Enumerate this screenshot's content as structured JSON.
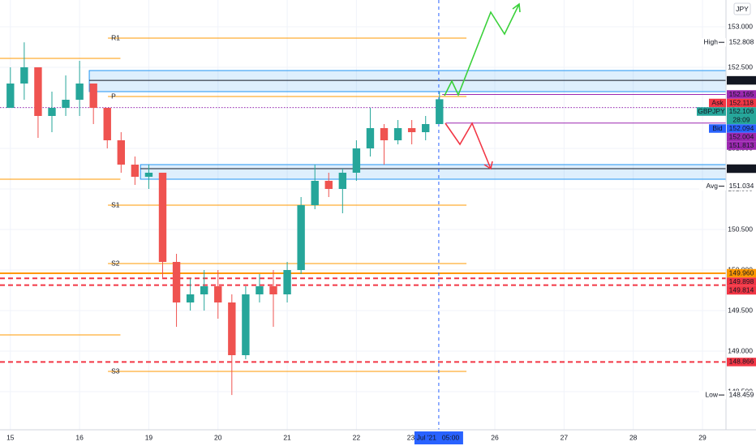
{
  "chart_data": {
    "type": "candlestick",
    "currency": "JPY",
    "x": [
      0,
      0.2,
      0.4,
      0.6,
      0.8,
      1,
      1.2,
      1.4,
      1.6,
      1.8,
      2,
      2.2,
      2.4,
      2.6,
      2.8,
      3,
      3.2,
      3.4,
      3.6,
      3.8,
      4,
      4.2,
      4.4,
      4.6,
      4.8,
      5,
      5.2,
      5.4,
      5.6,
      5.8,
      6,
      6.2
    ],
    "open": [
      152.0,
      152.3,
      152.5,
      151.9,
      152.0,
      152.1,
      152.3,
      152.0,
      151.6,
      151.3,
      151.15,
      151.2,
      150.1,
      149.6,
      149.7,
      149.8,
      149.6,
      148.95,
      149.7,
      149.8,
      149.7,
      150.0,
      150.8,
      151.1,
      151.0,
      151.2,
      151.5,
      151.75,
      151.6,
      151.75,
      151.7,
      151.8
    ],
    "high": [
      152.5,
      152.808,
      152.5,
      152.2,
      152.4,
      152.58,
      152.3,
      152.0,
      151.7,
      151.4,
      151.3,
      151.2,
      150.2,
      149.9,
      150.0,
      150.0,
      149.7,
      149.8,
      149.95,
      150.0,
      150.1,
      150.9,
      151.3,
      151.2,
      151.25,
      151.6,
      152.0,
      151.8,
      151.85,
      151.85,
      151.9,
      152.2
    ],
    "low": [
      152.0,
      152.1,
      151.63,
      151.7,
      151.9,
      151.9,
      151.8,
      151.5,
      151.2,
      151.05,
      151.0,
      149.9,
      149.3,
      149.5,
      149.5,
      149.4,
      148.459,
      148.9,
      149.6,
      149.3,
      149.6,
      149.95,
      150.75,
      150.9,
      150.7,
      151.1,
      151.4,
      151.3,
      151.55,
      151.55,
      151.6,
      151.8
    ],
    "close": [
      152.3,
      152.5,
      151.9,
      152.0,
      152.1,
      152.3,
      152.0,
      151.6,
      151.3,
      151.15,
      151.2,
      150.1,
      149.6,
      149.7,
      149.8,
      149.6,
      148.95,
      149.7,
      149.8,
      149.7,
      150.0,
      150.8,
      151.1,
      151.0,
      151.2,
      151.5,
      151.75,
      151.6,
      151.75,
      151.7,
      151.8,
      152.106
    ],
    "up_color": "#26a69a",
    "down_color": "#ef5350",
    "xlim": [
      -0.15,
      10.34
    ],
    "ylim": [
      148.03,
      153.33
    ],
    "xticks": [
      {
        "value": 0,
        "label": "15"
      },
      {
        "value": 1,
        "label": "16"
      },
      {
        "value": 2,
        "label": "19"
      },
      {
        "value": 3,
        "label": "20"
      },
      {
        "value": 4,
        "label": "21"
      },
      {
        "value": 5,
        "label": "22"
      },
      {
        "value": 7,
        "label": "26"
      },
      {
        "value": 8,
        "label": "27"
      },
      {
        "value": 9,
        "label": "28"
      },
      {
        "value": 10,
        "label": "29"
      }
    ],
    "yticks": [
      {
        "value": 153,
        "label": "153.000"
      },
      {
        "value": 152.5,
        "label": "152.500"
      },
      {
        "value": 152,
        "label": "152.000"
      },
      {
        "value": 151.5,
        "label": "151.500"
      },
      {
        "value": 151,
        "label": "151.000"
      },
      {
        "value": 150.5,
        "label": "150.500"
      },
      {
        "value": 150,
        "label": "150.000"
      },
      {
        "value": 149.5,
        "label": "149.500"
      },
      {
        "value": 149,
        "label": "149.000"
      },
      {
        "value": 148.5,
        "label": "148.500"
      }
    ],
    "grid": true,
    "crosshair": {
      "value": 6.19,
      "label": "23 Jul '21",
      "time": "05:00"
    },
    "zones": [
      {
        "from": 1.14,
        "to": 10.34,
        "low": 152.2,
        "high": 152.46
      },
      {
        "from": 1.88,
        "to": 10.34,
        "low": 151.12,
        "high": 151.3
      }
    ],
    "pivots": [
      {
        "name": "R1",
        "value": 152.86
      },
      {
        "name": "P",
        "value": 152.14
      },
      {
        "name": "S1",
        "value": 150.8
      },
      {
        "name": "S2",
        "value": 150.08
      },
      {
        "name": "S3",
        "value": 148.75
      }
    ],
    "pivot_range": [
      1.41,
      6.59
    ],
    "pivot_color": "#ff9800",
    "lines": [
      {
        "value": 152.61,
        "from": -0.15,
        "to": 1.59,
        "color": "#ff9800",
        "style": "solid"
      },
      {
        "value": 151.12,
        "from": -0.15,
        "to": 1.59,
        "color": "#ff9800",
        "style": "solid"
      },
      {
        "value": 149.2,
        "from": -0.15,
        "to": 1.59,
        "color": "#ff9800",
        "style": "solid"
      },
      {
        "value": 152.339,
        "from": 1.14,
        "to": 10.34,
        "color": "#131722",
        "style": "solid"
      },
      {
        "value": 151.25,
        "from": 1.88,
        "to": 10.34,
        "color": "#131722",
        "style": "solid"
      },
      {
        "value": 152.165,
        "from": 6.24,
        "to": 10.34,
        "color": "#9c27b0",
        "style": "solid"
      },
      {
        "value": 151.813,
        "from": 6.29,
        "to": 10.34,
        "color": "#9c27b0",
        "style": "solid"
      },
      {
        "value": 152.004,
        "from": -0.15,
        "to": 10.34,
        "color": "#9c27b0",
        "style": "dotted"
      },
      {
        "value": 149.96,
        "from": -0.15,
        "to": 10.34,
        "color": "#ff9800",
        "style": "thick"
      },
      {
        "value": 149.898,
        "from": -0.15,
        "to": 10.34,
        "color": "#f23645",
        "style": "dashed"
      },
      {
        "value": 149.814,
        "from": -0.15,
        "to": 10.34,
        "color": "#f23645",
        "style": "dashed"
      },
      {
        "value": 148.866,
        "from": -0.15,
        "to": 10.34,
        "color": "#f23645",
        "style": "dashed"
      }
    ],
    "price_labels": [
      {
        "tag": "High",
        "value": 152.808,
        "label": "152.808",
        "color": "#ffffff"
      },
      {
        "value": 152.339,
        "label": "152.339",
        "color": "#131722"
      },
      {
        "value": 152.165,
        "label": "152.165",
        "color": "#9c27b0"
      },
      {
        "tag": "Ask",
        "value": 152.118,
        "label": "152.118",
        "color": "#f23645"
      },
      {
        "tag": "GBPJPY",
        "value": 152.106,
        "label": "152.106",
        "color": "#26a69a",
        "countdown": "28:09"
      },
      {
        "tag": "Bid",
        "value": 152.094,
        "label": "152.094",
        "color": "#2962ff"
      },
      {
        "value": 152.004,
        "label": "152.004",
        "color": "#9c27b0"
      },
      {
        "value": 151.813,
        "label": "151.813",
        "color": "#9c27b0"
      },
      {
        "value": 151.25,
        "label": "151.250",
        "color": "#131722"
      },
      {
        "tag": "Avg",
        "value": 151.034,
        "label": "151.034",
        "color": "#ffffff"
      },
      {
        "value": 149.96,
        "label": "149.960",
        "color": "#ff9800"
      },
      {
        "value": 149.898,
        "label": "149.898",
        "color": "#f23645"
      },
      {
        "value": 149.814,
        "label": "149.814",
        "color": "#f23645"
      },
      {
        "value": 148.866,
        "label": "148.866",
        "color": "#f23645"
      },
      {
        "tag": "Low",
        "value": 148.459,
        "label": "148.459",
        "color": "#ffffff"
      }
    ]
  }
}
